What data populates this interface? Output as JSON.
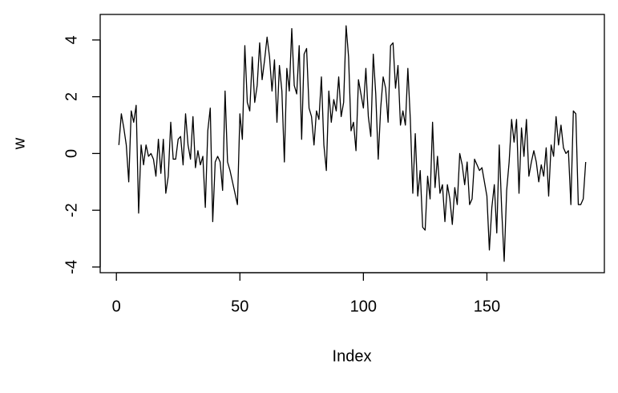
{
  "chart_data": {
    "type": "line",
    "xlabel": "Index",
    "ylabel": "w",
    "color": "#000000",
    "x": [
      1,
      2,
      3,
      4,
      5,
      6,
      7,
      8,
      9,
      10,
      11,
      12,
      13,
      14,
      15,
      16,
      17,
      18,
      19,
      20,
      21,
      22,
      23,
      24,
      25,
      26,
      27,
      28,
      29,
      30,
      31,
      32,
      33,
      34,
      35,
      36,
      37,
      38,
      39,
      40,
      41,
      42,
      43,
      44,
      45,
      46,
      47,
      48,
      49,
      50,
      51,
      52,
      53,
      54,
      55,
      56,
      57,
      58,
      59,
      60,
      61,
      62,
      63,
      64,
      65,
      66,
      67,
      68,
      69,
      70,
      71,
      72,
      73,
      74,
      75,
      76,
      77,
      78,
      79,
      80,
      81,
      82,
      83,
      84,
      85,
      86,
      87,
      88,
      89,
      90,
      91,
      92,
      93,
      94,
      95,
      96,
      97,
      98,
      99,
      100,
      101,
      102,
      103,
      104,
      105,
      106,
      107,
      108,
      109,
      110,
      111,
      112,
      113,
      114,
      115,
      116,
      117,
      118,
      119,
      120,
      121,
      122,
      123,
      124,
      125,
      126,
      127,
      128,
      129,
      130,
      131,
      132,
      133,
      134,
      135,
      136,
      137,
      138,
      139,
      140,
      141,
      142,
      143,
      144,
      145,
      146,
      147,
      148,
      149,
      150,
      151,
      152,
      153,
      154,
      155,
      156,
      157,
      158,
      159,
      160,
      161,
      162,
      163,
      164,
      165,
      166,
      167,
      168,
      169,
      170,
      171,
      172,
      173,
      174,
      175,
      176,
      177,
      178,
      179,
      180,
      181,
      182,
      183,
      184,
      185,
      186,
      187,
      188,
      189,
      190
    ],
    "values": [
      0.3,
      1.4,
      0.9,
      0.3,
      -1.0,
      1.5,
      1.1,
      1.7,
      -2.1,
      0.3,
      -0.4,
      0.3,
      -0.1,
      0.0,
      -0.2,
      -0.8,
      0.5,
      -0.7,
      0.5,
      -1.4,
      -0.8,
      1.1,
      -0.2,
      -0.2,
      0.5,
      0.6,
      -0.4,
      1.4,
      0.3,
      -0.2,
      1.3,
      -0.5,
      0.1,
      -0.4,
      -0.1,
      -1.9,
      0.8,
      1.6,
      -2.4,
      -0.3,
      -0.1,
      -0.3,
      -1.3,
      2.2,
      -0.3,
      -0.6,
      -1.0,
      -1.4,
      -1.8,
      1.4,
      0.5,
      3.8,
      1.8,
      1.5,
      3.4,
      1.8,
      2.4,
      3.9,
      2.6,
      3.3,
      4.1,
      3.4,
      2.2,
      3.3,
      1.1,
      3.1,
      2.2,
      -0.3,
      3.0,
      2.2,
      4.4,
      2.4,
      2.1,
      3.8,
      0.5,
      3.5,
      3.7,
      1.6,
      1.3,
      0.3,
      1.5,
      1.2,
      2.7,
      0.3,
      -0.6,
      2.2,
      1.1,
      1.9,
      1.5,
      2.7,
      1.3,
      1.8,
      4.5,
      3.4,
      0.8,
      1.1,
      0.1,
      2.6,
      2.1,
      1.6,
      3.0,
      1.3,
      0.6,
      3.5,
      2.1,
      -0.2,
      1.6,
      2.7,
      2.3,
      1.1,
      3.8,
      3.9,
      2.3,
      3.1,
      1.0,
      1.5,
      1.0,
      3.0,
      1.2,
      -1.4,
      0.7,
      -1.5,
      -0.6,
      -2.6,
      -2.7,
      -0.8,
      -1.6,
      1.1,
      -1.2,
      -0.1,
      -1.4,
      -1.1,
      -2.4,
      -1.1,
      -1.6,
      -2.5,
      -1.2,
      -1.8,
      0.0,
      -0.4,
      -1.1,
      -0.3,
      -1.8,
      -1.6,
      -0.2,
      -0.4,
      -0.6,
      -0.5,
      -1.0,
      -1.5,
      -3.4,
      -1.9,
      -1.1,
      -2.8,
      0.3,
      -2.0,
      -3.8,
      -1.3,
      -0.3,
      1.2,
      0.4,
      1.2,
      -1.4,
      0.9,
      -0.1,
      1.2,
      -0.8,
      -0.3,
      0.1,
      -0.3,
      -1.0,
      -0.4,
      -0.8,
      0.2,
      -1.5,
      0.3,
      -0.1,
      1.3,
      0.3,
      1.0,
      0.2,
      0.0,
      0.1,
      -1.8,
      1.5,
      1.4,
      -1.8,
      -1.8,
      -1.6,
      -0.3
    ],
    "xlim": [
      -6.56,
      197.56
    ],
    "ylim": [
      -4.2,
      4.9
    ],
    "xticks": [
      0,
      50,
      100,
      150
    ],
    "yticks": [
      -4,
      -2,
      0,
      2,
      4
    ]
  }
}
